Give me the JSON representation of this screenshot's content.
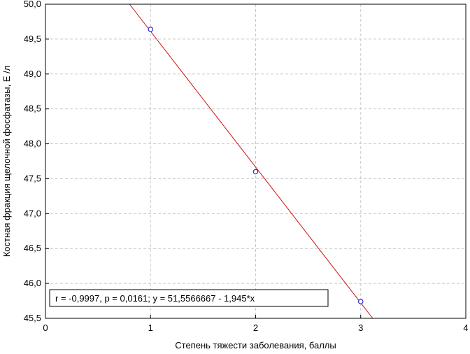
{
  "chart_data": {
    "type": "scatter",
    "xlabel": "Степень тяжести заболевания, баллы",
    "ylabel": "Костная фракция щелочной фосфатазы, Е /л",
    "xlim": [
      0,
      4
    ],
    "ylim": [
      45.5,
      50.0
    ],
    "x_ticks": [
      0,
      1,
      2,
      3,
      4
    ],
    "x_tick_labels": [
      "0",
      "1",
      "2",
      "3",
      "4"
    ],
    "y_ticks": [
      45.5,
      46.0,
      46.5,
      47.0,
      47.5,
      48.0,
      48.5,
      49.0,
      49.5,
      50.0
    ],
    "y_tick_labels": [
      "45,5",
      "46,0",
      "46,5",
      "47,0",
      "47,5",
      "48,0",
      "48,5",
      "49,0",
      "49,5",
      "50,0"
    ],
    "grid": true,
    "series": [
      {
        "x": [
          1,
          2,
          3
        ],
        "y": [
          49.64,
          47.6,
          45.74
        ]
      }
    ],
    "fit_line": {
      "intercept": 51.5566667,
      "slope": -1.945
    },
    "annotation": "r = -0,9997, p = 0,0161;  y = 51,5566667 - 1,945*x",
    "colors": {
      "points": "#2b2bd0",
      "line": "#d01010",
      "grid": "#c8c8c8",
      "axes": "#000000"
    }
  }
}
